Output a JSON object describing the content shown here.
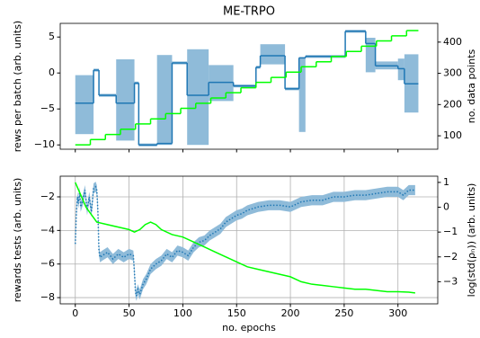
{
  "chart_data": [
    {
      "type": "line",
      "title": "ME-TRPO",
      "ylabel": "rews per batch (arb. units)",
      "y2label": "no. data points",
      "xlim": [
        -14,
        337
      ],
      "xticks": [
        0,
        50,
        100,
        150,
        200,
        250,
        300
      ],
      "ylim": [
        -10.6,
        6.9
      ],
      "yticks": [
        {
          "value": -10,
          "label": "−10"
        },
        {
          "value": -5,
          "label": "−5"
        },
        0,
        5
      ],
      "y2lim": [
        57,
        460
      ],
      "y2ticks": [
        100,
        200,
        300,
        400
      ],
      "y2color": "#00ee00",
      "grid": false,
      "series": [
        {
          "color": "#1f77b4",
          "band_color": "#8fbbd9",
          "step": true,
          "x": [
            0,
            17,
            22,
            38,
            55,
            59,
            76,
            90,
            104,
            124,
            147,
            168,
            172,
            195,
            208,
            214,
            251,
            270,
            279,
            300,
            306,
            319
          ],
          "values": [
            -4.2,
            0.4,
            -3.1,
            -4.2,
            -1.4,
            -10.0,
            -9.8,
            1.4,
            -3.1,
            -1.3,
            -1.8,
            0.8,
            2.4,
            -2.2,
            2.1,
            2.3,
            5.8,
            4.1,
            1.0,
            0.6,
            -1.5,
            -1.5
          ],
          "lower": [
            -8.5,
            0.2,
            -3.3,
            -9.4,
            -1.6,
            -10.2,
            -10.0,
            1.2,
            -10.0,
            -3.9,
            -2.0,
            0.6,
            1.2,
            -2.4,
            -8.2,
            2.1,
            5.6,
            0.1,
            0.5,
            -1.0,
            -5.5,
            -5.5
          ],
          "upper": [
            -0.3,
            0.6,
            -2.9,
            1.9,
            -1.2,
            -9.8,
            2.5,
            1.6,
            3.3,
            1.1,
            -1.6,
            1.0,
            4.0,
            -2.0,
            2.2,
            2.5,
            6.0,
            4.9,
            1.6,
            2.0,
            2.6,
            2.6
          ]
        },
        {
          "color": "#00ff00",
          "step": true,
          "axis": "y2",
          "x": [
            0,
            14,
            28,
            42,
            56,
            70,
            84,
            98,
            112,
            126,
            140,
            154,
            168,
            182,
            196,
            210,
            224,
            238,
            252,
            266,
            280,
            294,
            308,
            319
          ],
          "values": [
            71,
            88,
            104,
            121,
            138,
            154,
            171,
            188,
            204,
            221,
            238,
            254,
            271,
            287,
            304,
            321,
            337,
            354,
            370,
            387,
            404,
            420,
            437,
            437
          ]
        }
      ]
    },
    {
      "type": "line",
      "xlabel": "no. epochs",
      "ylabel": "rewards tests (arb. units)",
      "y2label": "log(std(ρₙ)) (arb. units)",
      "xlim": [
        -14,
        337
      ],
      "xticks": [
        0,
        50,
        100,
        150,
        200,
        250,
        300
      ],
      "ylim": [
        -8.37,
        -0.77
      ],
      "yticks": [
        {
          "value": -8,
          "label": "−8"
        },
        {
          "value": -6,
          "label": "−6"
        },
        {
          "value": -4,
          "label": "−4"
        },
        {
          "value": -2,
          "label": "−2"
        }
      ],
      "y2lim": [
        -3.89,
        1.25
      ],
      "y2ticks": [
        {
          "value": -3,
          "label": "−3"
        },
        {
          "value": -2,
          "label": "−2"
        },
        {
          "value": -1,
          "label": "−1"
        },
        0,
        1
      ],
      "y2color": "#00ee00",
      "grid": true,
      "series": [
        {
          "color": "#1f77b4",
          "band_color": "#8fbbd9",
          "dotted": true,
          "error": 0.3,
          "x": [
            0,
            1,
            2,
            3,
            4,
            5,
            7,
            9,
            11,
            13,
            15,
            17,
            19,
            20,
            21,
            22,
            23,
            25,
            30,
            35,
            40,
            45,
            50,
            54,
            55,
            56,
            57,
            58,
            60,
            63,
            66,
            70,
            75,
            80,
            85,
            90,
            95,
            100,
            105,
            110,
            115,
            120,
            125,
            130,
            135,
            140,
            145,
            150,
            155,
            160,
            170,
            180,
            190,
            200,
            210,
            220,
            230,
            240,
            250,
            260,
            270,
            280,
            290,
            300,
            305,
            310,
            316
          ],
          "values": [
            -4.8,
            -3.0,
            -2.0,
            -2.4,
            -1.7,
            -2.6,
            -2.2,
            -1.6,
            -2.8,
            -2.0,
            -2.9,
            -1.5,
            -1.4,
            -1.6,
            -2.8,
            -5.2,
            -5.6,
            -5.5,
            -5.3,
            -5.7,
            -5.4,
            -5.6,
            -5.4,
            -5.5,
            -6.5,
            -7.7,
            -7.9,
            -7.5,
            -7.8,
            -7.2,
            -6.9,
            -6.3,
            -6.0,
            -5.8,
            -5.4,
            -5.6,
            -5.2,
            -5.3,
            -5.5,
            -5.0,
            -4.7,
            -4.6,
            -4.3,
            -4.1,
            -3.9,
            -3.5,
            -3.3,
            -3.1,
            -3.0,
            -2.8,
            -2.6,
            -2.5,
            -2.5,
            -2.6,
            -2.3,
            -2.2,
            -2.2,
            -2.0,
            -2.0,
            -1.9,
            -1.9,
            -1.8,
            -1.7,
            -1.7,
            -1.9,
            -1.6,
            -1.6
          ]
        },
        {
          "color": "#00ff00",
          "axis": "y2",
          "x": [
            0,
            5,
            10,
            15,
            20,
            30,
            40,
            50,
            55,
            60,
            65,
            70,
            75,
            80,
            90,
            100,
            110,
            120,
            130,
            140,
            150,
            160,
            170,
            180,
            190,
            200,
            210,
            220,
            230,
            240,
            250,
            260,
            270,
            280,
            290,
            300,
            310,
            316
          ],
          "values": [
            1.0,
            0.5,
            0.0,
            -0.3,
            -0.6,
            -0.7,
            -0.8,
            -0.9,
            -1.0,
            -0.9,
            -0.7,
            -0.6,
            -0.7,
            -0.9,
            -1.1,
            -1.2,
            -1.4,
            -1.6,
            -1.8,
            -2.0,
            -2.2,
            -2.4,
            -2.5,
            -2.6,
            -2.7,
            -2.8,
            -3.0,
            -3.1,
            -3.15,
            -3.2,
            -3.25,
            -3.3,
            -3.3,
            -3.35,
            -3.4,
            -3.4,
            -3.42,
            -3.45
          ]
        }
      ]
    }
  ]
}
